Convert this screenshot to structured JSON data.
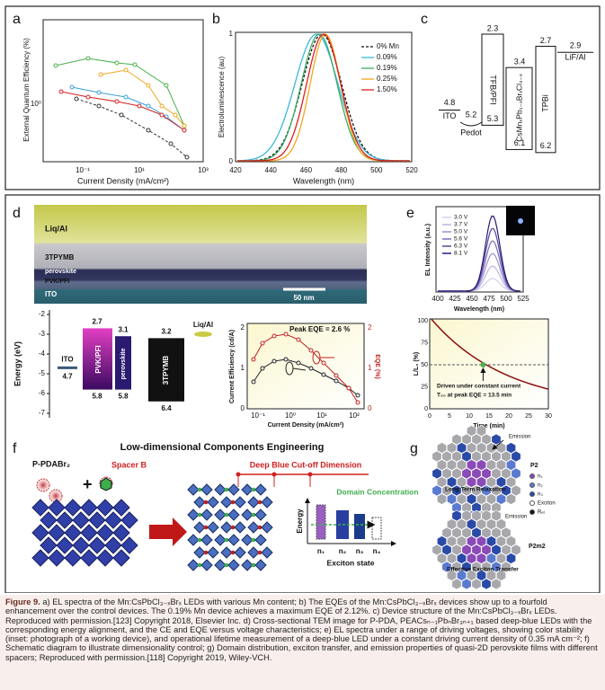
{
  "panel_a": {
    "label": "a",
    "y_title": "External Quantum Efficiency (%)",
    "y_tick": "10⁰",
    "x_title": "Current Density (mA/cm²)",
    "x_ticks": [
      "10⁻¹",
      "10¹",
      "10³"
    ]
  },
  "panel_b": {
    "label": "b",
    "y_title": "Electroluminescence (au)",
    "y_ticks": [
      "0",
      "1"
    ],
    "x_title": "Wavelength (nm)",
    "x_ticks": [
      "420",
      "440",
      "460",
      "480",
      "500",
      "520"
    ],
    "legend": [
      "0% Mn",
      "0.09%",
      "0.19%",
      "0.25%",
      "1.50%"
    ]
  },
  "panel_c": {
    "label": "c",
    "tfb_top": "2.3",
    "cs_top": "3.4",
    "tpbi_top": "2.7",
    "lif_level": "2.9",
    "lif": "LiF/Al",
    "tfb": "TFB/PFI",
    "cs": "CsMnₓPb₁₋ₓBrₓCl₃₋ₓ",
    "tpbi": "TPBi",
    "ito_level": "4.8",
    "ito": "ITO",
    "pedot_level": "5.2",
    "pedot": "Pedot",
    "tfb_bottom": "5.3",
    "cs_bottom": "6.1",
    "tpbi_bottom": "6.2"
  },
  "panel_d": {
    "label": "d",
    "layers": [
      "Liq/Al",
      "3TPYMB",
      "perovskite",
      "PVK/PFI",
      "ITO"
    ],
    "scale_bar": "50 nm",
    "energy": {
      "y_title": "Energy (eV)",
      "y_ticks": [
        "-2",
        "-3",
        "-4",
        "-5",
        "-6",
        "-7"
      ],
      "ito": "ITO",
      "ito_level": "4.7",
      "pvk": "PVK/PFI",
      "pvk_top": "2.7",
      "pvk_bottom": "5.8",
      "perov": "perovskite",
      "perov_top": "3.1",
      "perov_bottom": "5.8",
      "tpymb": "3TPYMB",
      "tpymb_top": "3.2",
      "tpymb_bottom": "6.4",
      "liq": "Liq/Al"
    },
    "ce": {
      "peak": "Peak EQE = 2.6 %",
      "y_title": "Current Efficiency (cd/A)",
      "y2_title": "EQE (%)",
      "y_ticks": [
        "0",
        "1",
        "2"
      ],
      "y2_ticks": [
        "0",
        "1",
        "2"
      ],
      "x_ticks": [
        "10⁻¹",
        "10⁰",
        "10¹",
        "10²"
      ],
      "x_title": "Current Density (mA/cm²)"
    }
  },
  "panel_e": {
    "label": "e",
    "legend": [
      "3.0 V",
      "3.7 V",
      "5.0 V",
      "5.6 V",
      "6.3 V",
      "8.1 V"
    ],
    "y_title": "EL Intensity (a.u.)",
    "x_ticks": [
      "400",
      "425",
      "450",
      "475",
      "500",
      "525"
    ],
    "x_title": "Wavelength (nm)",
    "life": {
      "y_title": "L/L₀ (%)",
      "y_ticks": [
        "0",
        "25",
        "50",
        "75",
        "100"
      ],
      "x_ticks": [
        "0",
        "5",
        "10",
        "15",
        "20",
        "25",
        "30"
      ],
      "x_title": "Time (min)",
      "note": [
        "Driven under constant current",
        "T₅₀ at peak EQE = 13.5 min"
      ]
    }
  },
  "panel_f": {
    "label": "f",
    "title": "Low-dimensional Components Engineering",
    "ligand": "P-PDABr₂",
    "plus": "+",
    "spacer": "Spacer B",
    "cutoff": "Deep Blue Cut-off Dimension",
    "domain": "Domain Concentration",
    "energy": "Energy",
    "states": [
      "n₁",
      "n₂",
      "n₃",
      "n₄"
    ],
    "exciton": "Exciton state"
  },
  "panel_g": {
    "label": "g",
    "emission_top": "Emission",
    "p2": "P2",
    "relax": "Long Term Relaxation",
    "legend": [
      "n₁",
      "n₂",
      "n₃",
      "Exciton",
      "Rₑₜ"
    ],
    "emission_bottom": "Emission",
    "p2m2": "P2m2",
    "transfer": "Effective Exciton Transfer"
  },
  "caption": {
    "label": "Figure 9.",
    "text": "a) EL spectra of the Mn:CsPbCl₃₋ₓBrₓ LEDs with various Mn content; b) The EQEs of the Mn:CsPbCl₃₋ₓBrₓ devices show up to a fourfold enhancement over the control devices. The 0.19% Mn device achieves a maximum EQE of 2.12%. c) Device structure of the Mn:CsPbCl₃₋ₓBrₓ LEDs. Reproduced with permission.[123] Copyright 2018, Elsevier Inc. d) Cross-sectional TEM image for P-PDA, PEACsₙ₋₁PbₙBr₃ₙ₊₁ based deep-blue LEDs with the corresponding energy alignment, and the CE and EQE versus voltage characteristics; e) EL spectra under a range of driving voltages, showing color stability (inset: photograph of a working device), and operational lifetime measurement of a deep-blue LED under a constant driving current density of 0.35 mA cm⁻²; f) Schematic diagram to illustrate dimensionality control; g) Domain distribution, exciton transfer, and emission properties of quasi-2D perovskite films with different spacers; Reproduced with permission.[118] Copyright 2019, Wiley-VCH."
  }
}
